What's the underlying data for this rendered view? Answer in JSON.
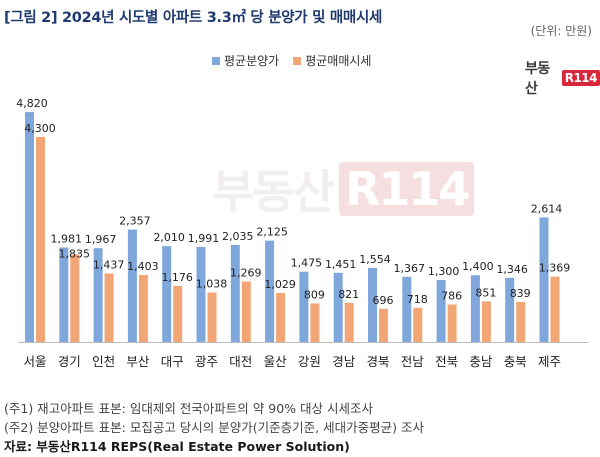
{
  "title": "[그림 2] 2024년 시도별 아파트 3.3㎡ 당 분양가 및 매매시세",
  "unit": "(단위: 만원)",
  "logo": {
    "text": "부동산",
    "box": "R114"
  },
  "watermark": {
    "text": "부동산",
    "box": "R114"
  },
  "footnotes": [
    "(주1) 재고아파트 표본: 임대제외 전국아파트의 약 90% 대상 시세조사",
    "(주2) 분양아파트 표본: 모집공고 당시의 분양가(기준층기준, 세대가중평균) 조사"
  ],
  "source": "자료: 부동산R114 REPS(Real Estate Power Solution)",
  "colors": {
    "series1": "#7fa7dc",
    "series2": "#f3a675"
  },
  "chart_data": {
    "type": "bar",
    "title": "[그림 2] 2024년 시도별 아파트 3.3㎡ 당 분양가 및 매매시세",
    "categories": [
      "서울",
      "경기",
      "인천",
      "부산",
      "대구",
      "광주",
      "대전",
      "울산",
      "강원",
      "경남",
      "경북",
      "전남",
      "전북",
      "충남",
      "충북",
      "제주"
    ],
    "series": [
      {
        "name": "평균분양가",
        "values": [
          4820,
          1981,
          1967,
          2357,
          2010,
          1991,
          2035,
          2125,
          1475,
          1451,
          1554,
          1367,
          1300,
          1400,
          1346,
          2614
        ]
      },
      {
        "name": "평균매매시세",
        "values": [
          4300,
          1835,
          1437,
          1403,
          1176,
          1038,
          1269,
          1029,
          809,
          821,
          696,
          718,
          786,
          851,
          839,
          1369
        ]
      }
    ],
    "value_labels": {
      "series1": [
        "4,820",
        "1,981",
        "1,967",
        "2,357",
        "2,010",
        "1,991",
        "2,035",
        "2,125",
        "1,475",
        "1,451",
        "1,554",
        "1,367",
        "1,300",
        "1,400",
        "1,346",
        "2,614"
      ],
      "series2": [
        "4,300",
        "1,835",
        "1,437",
        "1,403",
        "1,176",
        "1,038",
        "1,269",
        "1,029",
        "809",
        "821",
        "696",
        "718",
        "786",
        "851",
        "839",
        "1,369"
      ]
    },
    "legend": "top-center",
    "grid": false,
    "ylim": [
      0,
      5500
    ]
  }
}
